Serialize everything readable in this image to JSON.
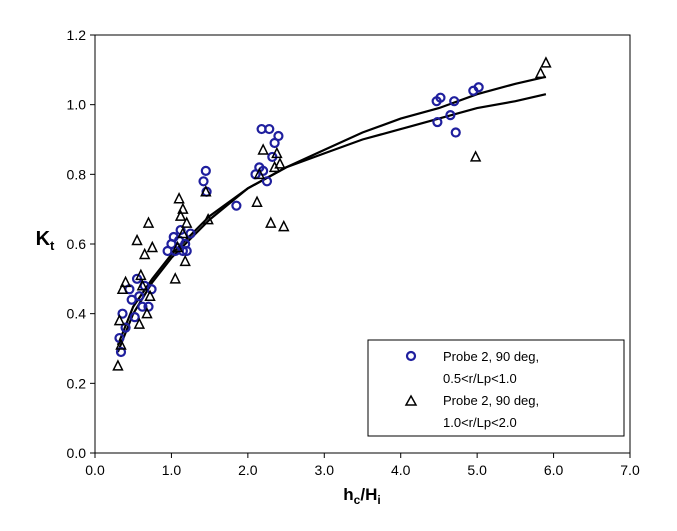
{
  "chart_data": {
    "type": "scatter",
    "xlabel": {
      "main": "h",
      "sub1": "c",
      "mid": "/H",
      "sub2": "i"
    },
    "ylabel": {
      "main": "K",
      "sub": "t"
    },
    "xlim": [
      0,
      7
    ],
    "ylim": [
      0,
      1.2
    ],
    "x_ticks": [
      "0.0",
      "1.0",
      "2.0",
      "3.0",
      "4.0",
      "5.0",
      "6.0",
      "7.0"
    ],
    "y_ticks": [
      "0.0",
      "0.2",
      "0.4",
      "0.6",
      "0.8",
      "1.0",
      "1.2"
    ],
    "grid": false,
    "legend_position": "bottom-right",
    "series": [
      {
        "name": "Probe 2, 90 deg, 0.5<r/Lp<1.0",
        "legend_lines": [
          "Probe 2, 90 deg,",
          "0.5<r/Lp<1.0"
        ],
        "marker": "circle",
        "color": "#1f1f9e",
        "points": [
          [
            0.32,
            0.33
          ],
          [
            0.34,
            0.29
          ],
          [
            0.36,
            0.4
          ],
          [
            0.4,
            0.36
          ],
          [
            0.45,
            0.47
          ],
          [
            0.48,
            0.44
          ],
          [
            0.52,
            0.39
          ],
          [
            0.55,
            0.5
          ],
          [
            0.58,
            0.45
          ],
          [
            0.62,
            0.42
          ],
          [
            0.65,
            0.48
          ],
          [
            0.7,
            0.42
          ],
          [
            0.74,
            0.47
          ],
          [
            0.95,
            0.58
          ],
          [
            1.0,
            0.6
          ],
          [
            1.03,
            0.62
          ],
          [
            1.05,
            0.58
          ],
          [
            1.1,
            0.61
          ],
          [
            1.12,
            0.64
          ],
          [
            1.15,
            0.58
          ],
          [
            1.18,
            0.6
          ],
          [
            1.2,
            0.58
          ],
          [
            1.25,
            0.63
          ],
          [
            1.42,
            0.78
          ],
          [
            1.45,
            0.81
          ],
          [
            1.46,
            0.75
          ],
          [
            1.85,
            0.71
          ],
          [
            2.1,
            0.8
          ],
          [
            2.15,
            0.82
          ],
          [
            2.18,
            0.93
          ],
          [
            2.2,
            0.81
          ],
          [
            2.25,
            0.78
          ],
          [
            2.28,
            0.93
          ],
          [
            2.32,
            0.85
          ],
          [
            2.35,
            0.89
          ],
          [
            2.4,
            0.91
          ],
          [
            4.47,
            1.01
          ],
          [
            4.48,
            0.95
          ],
          [
            4.52,
            1.02
          ],
          [
            4.65,
            0.97
          ],
          [
            4.7,
            1.01
          ],
          [
            4.72,
            0.92
          ],
          [
            4.95,
            1.04
          ],
          [
            5.02,
            1.05
          ]
        ]
      },
      {
        "name": "Probe 2, 90 deg, 1.0<r/Lp<2.0",
        "legend_lines": [
          "Probe 2, 90 deg,",
          "1.0<r/Lp<2.0"
        ],
        "marker": "triangle",
        "color": "#000000",
        "points": [
          [
            0.3,
            0.25
          ],
          [
            0.32,
            0.38
          ],
          [
            0.34,
            0.31
          ],
          [
            0.36,
            0.47
          ],
          [
            0.4,
            0.49
          ],
          [
            0.55,
            0.61
          ],
          [
            0.58,
            0.37
          ],
          [
            0.6,
            0.51
          ],
          [
            0.62,
            0.48
          ],
          [
            0.65,
            0.57
          ],
          [
            0.68,
            0.4
          ],
          [
            0.7,
            0.66
          ],
          [
            0.72,
            0.45
          ],
          [
            0.75,
            0.59
          ],
          [
            1.05,
            0.5
          ],
          [
            1.08,
            0.59
          ],
          [
            1.1,
            0.73
          ],
          [
            1.12,
            0.68
          ],
          [
            1.15,
            0.7
          ],
          [
            1.15,
            0.63
          ],
          [
            1.18,
            0.55
          ],
          [
            1.2,
            0.66
          ],
          [
            1.45,
            0.75
          ],
          [
            1.48,
            0.67
          ],
          [
            2.12,
            0.72
          ],
          [
            2.15,
            0.8
          ],
          [
            2.2,
            0.87
          ],
          [
            2.3,
            0.66
          ],
          [
            2.35,
            0.82
          ],
          [
            2.38,
            0.86
          ],
          [
            2.42,
            0.83
          ],
          [
            2.47,
            0.65
          ],
          [
            4.98,
            0.85
          ],
          [
            5.83,
            1.09
          ],
          [
            5.9,
            1.12
          ]
        ]
      }
    ],
    "trend_lines": [
      [
        [
          0.3,
          0.29
        ],
        [
          0.5,
          0.4
        ],
        [
          0.75,
          0.49
        ],
        [
          1.0,
          0.56
        ],
        [
          1.5,
          0.67
        ],
        [
          2.0,
          0.76
        ],
        [
          2.5,
          0.82
        ],
        [
          3.0,
          0.87
        ],
        [
          3.5,
          0.92
        ],
        [
          4.0,
          0.96
        ],
        [
          4.5,
          0.99
        ],
        [
          5.0,
          1.03
        ],
        [
          5.5,
          1.06
        ],
        [
          5.9,
          1.08
        ]
      ],
      [
        [
          0.3,
          0.31
        ],
        [
          0.5,
          0.42
        ],
        [
          0.75,
          0.5
        ],
        [
          1.0,
          0.57
        ],
        [
          1.5,
          0.68
        ],
        [
          2.0,
          0.76
        ],
        [
          2.5,
          0.82
        ],
        [
          3.0,
          0.86
        ],
        [
          3.5,
          0.9
        ],
        [
          4.0,
          0.93
        ],
        [
          4.5,
          0.96
        ],
        [
          5.0,
          0.99
        ],
        [
          5.5,
          1.01
        ],
        [
          5.9,
          1.03
        ]
      ]
    ]
  }
}
